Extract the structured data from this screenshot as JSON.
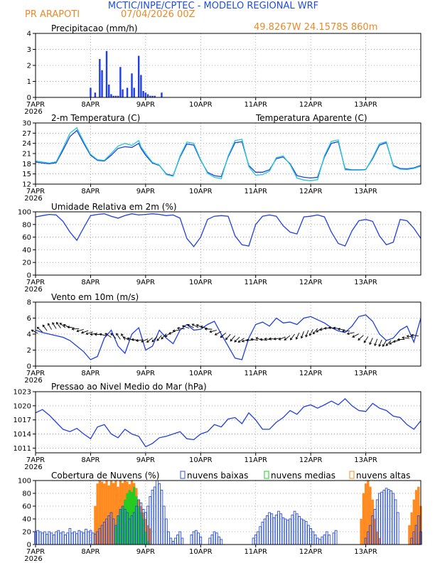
{
  "header": {
    "line1": "MCTIC/INPE/CPTEC - MODELO REGIONAL WRF",
    "station": "PR ARAPOTI",
    "run": "07/04/2026 00Z",
    "location": "49.8267W 24.1578S 860m"
  },
  "colors": {
    "header_blue": "#1f4fd8",
    "header_orange": "#e88a2a",
    "series_blue": "#1f3fe0",
    "series_cyan": "#22c7d8",
    "cloud_low": "#2a4fe0",
    "cloud_mid": "#22cc22",
    "cloud_high": "#ff8a1e"
  },
  "x_axis": {
    "ticks": [
      "7APR",
      "8APR",
      "9APR",
      "10APR",
      "11APR",
      "12APR",
      "13APR"
    ],
    "year": "2026"
  },
  "chart_data": [
    {
      "type": "bar",
      "id": "precip",
      "title": "Precipitacao (mm/h)",
      "ylim": [
        0,
        4
      ],
      "yticks": [
        0,
        1,
        2,
        3,
        4
      ],
      "x_hours": [
        24,
        26,
        28,
        29,
        31,
        32,
        33,
        34,
        35,
        36,
        37,
        38,
        40,
        42,
        43,
        45,
        46,
        47,
        48,
        49,
        50,
        51,
        52,
        55
      ],
      "values": [
        0.6,
        0.3,
        2.4,
        1.7,
        2.9,
        0.8,
        0.2,
        0.1,
        0.1,
        0.1,
        1.9,
        0.5,
        0.6,
        1.5,
        0.6,
        2.6,
        1.4,
        0.4,
        0.3,
        0.2,
        0.1,
        0.1,
        0.1,
        0.3
      ]
    },
    {
      "type": "line",
      "id": "temp",
      "title": "2-m Temperatura (C)",
      "ylim": [
        12,
        30
      ],
      "yticks": [
        12,
        15,
        18,
        21,
        24,
        27,
        30
      ],
      "x_hours": [
        0,
        3,
        6,
        9,
        12,
        15,
        18,
        21,
        24,
        27,
        30,
        33,
        36,
        39,
        42,
        45,
        46,
        48,
        51,
        54,
        57,
        60,
        63,
        66,
        69,
        72,
        75,
        78,
        81,
        84,
        87,
        90,
        93,
        96,
        99,
        102,
        105,
        108,
        111,
        114,
        117,
        120,
        123,
        126,
        129,
        132,
        135,
        138,
        141,
        144,
        147,
        150,
        153,
        156,
        159,
        162,
        165,
        168
      ],
      "series": [
        {
          "name": "",
          "values": [
            18.5,
            18.2,
            18,
            18.3,
            22,
            26,
            27.8,
            24,
            20.5,
            19,
            18.8,
            20.5,
            22.5,
            23,
            22.8,
            24,
            22.5,
            20.5,
            18.2,
            17.5,
            15,
            14.5,
            20,
            23.8,
            23.5,
            19,
            15.5,
            14.5,
            14.2,
            20,
            24.2,
            24.5,
            17.5,
            15.5,
            15.5,
            16.2,
            19.5,
            20,
            18,
            14.5,
            14,
            13.8,
            14,
            20,
            24,
            24.5,
            16.5,
            16.2,
            16.2,
            16.3,
            19.5,
            23.5,
            24.2,
            17.5,
            16.6,
            16.5,
            16.8,
            17.5
          ]
        },
        {
          "name": "Temperatura Aparente (C)",
          "values": [
            18.8,
            18.5,
            18.2,
            18.6,
            22.6,
            27,
            28.6,
            24.5,
            20.8,
            19.2,
            19,
            21,
            23.2,
            24,
            23.4,
            24.8,
            23,
            21,
            18.4,
            17.6,
            14.8,
            14.3,
            20.3,
            24.4,
            24,
            19.2,
            15.2,
            14,
            13.6,
            20.3,
            24.8,
            25.2,
            17.2,
            14.6,
            14.8,
            15.8,
            19.8,
            20.3,
            17.8,
            13.8,
            13.2,
            13,
            13.3,
            20.4,
            24.6,
            25,
            16.2,
            16.1,
            16.1,
            16.2,
            19.8,
            23.9,
            24.5,
            17.3,
            16.4,
            16.3,
            16.6,
            17.3
          ]
        }
      ]
    },
    {
      "type": "line",
      "id": "rh",
      "title": "Umidade Relativa em 2m (%)",
      "ylim": [
        0,
        100
      ],
      "yticks": [
        0,
        20,
        40,
        60,
        80,
        100
      ],
      "x_hours": [
        0,
        3,
        6,
        9,
        12,
        15,
        18,
        21,
        24,
        27,
        30,
        33,
        36,
        39,
        42,
        45,
        48,
        51,
        54,
        57,
        60,
        63,
        66,
        69,
        72,
        75,
        78,
        81,
        84,
        87,
        90,
        93,
        96,
        99,
        102,
        105,
        108,
        111,
        114,
        117,
        120,
        123,
        126,
        129,
        132,
        135,
        138,
        141,
        144,
        147,
        150,
        153,
        156,
        159,
        162,
        165,
        168
      ],
      "series": [
        {
          "name": "",
          "values": [
            92,
            94,
            96,
            95,
            85,
            68,
            55,
            75,
            94,
            96,
            97,
            93,
            90,
            94,
            97,
            95,
            96,
            97,
            96,
            94,
            95,
            90,
            58,
            45,
            60,
            88,
            93,
            94,
            93,
            62,
            48,
            46,
            80,
            93,
            95,
            93,
            78,
            68,
            65,
            92,
            93,
            95,
            92,
            68,
            50,
            46,
            70,
            86,
            88,
            85,
            62,
            48,
            52,
            88,
            86,
            74,
            58
          ]
        }
      ]
    },
    {
      "type": "line",
      "id": "wind",
      "title": "Vento em 10m (m/s)",
      "ylim": [
        0,
        8
      ],
      "yticks": [
        0,
        2,
        4,
        6,
        8
      ],
      "x_hours": [
        0,
        3,
        6,
        9,
        12,
        15,
        18,
        21,
        24,
        27,
        30,
        33,
        36,
        39,
        42,
        45,
        48,
        51,
        54,
        57,
        60,
        63,
        66,
        69,
        72,
        75,
        78,
        81,
        84,
        87,
        90,
        93,
        96,
        99,
        102,
        105,
        108,
        111,
        114,
        117,
        120,
        123,
        126,
        129,
        132,
        135,
        138,
        141,
        144,
        147,
        150,
        153,
        156,
        159,
        162,
        165,
        168
      ],
      "series": [
        {
          "name": "",
          "values": [
            4.5,
            4.2,
            4.0,
            3.8,
            3.6,
            3.2,
            2.5,
            1.8,
            0.8,
            1.2,
            3.5,
            4.5,
            2.5,
            1.6,
            4.0,
            4.8,
            2.0,
            2.5,
            4.5,
            3.5,
            2.8,
            4.5,
            5.2,
            4.5,
            4.6,
            5.2,
            5.6,
            4.0,
            2.5,
            1.0,
            0.8,
            3.5,
            5.2,
            5.5,
            5.0,
            6.0,
            5.4,
            5.5,
            5.2,
            6.0,
            6.2,
            5.8,
            5.4,
            4.8,
            4.4,
            4.2,
            5.0,
            6.2,
            6.4,
            5.6,
            4.0,
            3.2,
            3.5,
            4.5,
            5.0,
            3.0,
            6.0
          ]
        }
      ]
    },
    {
      "type": "line",
      "id": "pressure",
      "title": "Pressao ao Nivel Medio do Mar (hPa)",
      "ylim": [
        1010,
        1023
      ],
      "yticks": [
        1011,
        1014,
        1017,
        1020,
        1023
      ],
      "x_hours": [
        0,
        3,
        6,
        9,
        12,
        15,
        18,
        21,
        24,
        27,
        30,
        33,
        36,
        39,
        42,
        45,
        48,
        51,
        54,
        57,
        60,
        63,
        66,
        69,
        72,
        75,
        78,
        81,
        84,
        87,
        90,
        93,
        96,
        99,
        102,
        105,
        108,
        111,
        114,
        117,
        120,
        123,
        126,
        129,
        132,
        135,
        138,
        141,
        144,
        147,
        150,
        153,
        156,
        159,
        162,
        165,
        168
      ],
      "series": [
        {
          "name": "",
          "values": [
            1018.5,
            1019.2,
            1018,
            1016.5,
            1015,
            1014.5,
            1015.2,
            1014,
            1013,
            1015.5,
            1016,
            1014,
            1013.2,
            1015,
            1014,
            1013.5,
            1011.3,
            1012,
            1013.2,
            1013.5,
            1014,
            1014.5,
            1013,
            1012.8,
            1014,
            1014.5,
            1016,
            1015.5,
            1017.2,
            1017.5,
            1016.2,
            1018.5,
            1017,
            1015,
            1015,
            1016.5,
            1017.5,
            1019,
            1018.2,
            1019.8,
            1020.2,
            1019.5,
            1020.2,
            1021,
            1020.2,
            1021.5,
            1020,
            1019,
            1018.8,
            1020.5,
            1019.5,
            1019,
            1017.8,
            1017.5,
            1016,
            1015,
            1016.8
          ]
        }
      ]
    },
    {
      "type": "bar",
      "id": "clouds",
      "title": "Cobertura de Nuvens (%)",
      "ylim": [
        0,
        100
      ],
      "yticks": [
        0,
        20,
        40,
        60,
        80,
        100
      ],
      "legend": [
        "nuvens baixas",
        "nuvens medias",
        "nuvens altas"
      ],
      "series": [
        {
          "name": "nuvens baixas",
          "x_hours": [
            0,
            1,
            2,
            3,
            4,
            5,
            6,
            7,
            8,
            9,
            10,
            11,
            12,
            13,
            14,
            15,
            16,
            17,
            18,
            19,
            20,
            21,
            22,
            23,
            24,
            25,
            26,
            27,
            28,
            29,
            30,
            31,
            32,
            33,
            34,
            35,
            36,
            37,
            38,
            39,
            40,
            41,
            42,
            43,
            44,
            45,
            46,
            47,
            48,
            49,
            50,
            51,
            52,
            53,
            54,
            55,
            56,
            57,
            58,
            59,
            60,
            61,
            62,
            63,
            64,
            68,
            69,
            70,
            71,
            72,
            76,
            77,
            78,
            79,
            80,
            81,
            95,
            96,
            97,
            98,
            99,
            100,
            101,
            102,
            103,
            104,
            105,
            106,
            107,
            108,
            109,
            110,
            111,
            112,
            113,
            114,
            115,
            116,
            117,
            118,
            119,
            120,
            121,
            122,
            123,
            124,
            125,
            126,
            127,
            128,
            130,
            131,
            144,
            145,
            146,
            147,
            148,
            149,
            150,
            151,
            152,
            153,
            154,
            155,
            156,
            157,
            158,
            164,
            165,
            166,
            167,
            168
          ],
          "values": [
            20,
            22,
            20,
            18,
            20,
            16,
            20,
            18,
            15,
            20,
            22,
            18,
            20,
            15,
            18,
            25,
            18,
            20,
            17,
            22,
            20,
            18,
            24,
            20,
            22,
            18,
            16,
            20,
            25,
            30,
            35,
            40,
            45,
            50,
            40,
            30,
            45,
            55,
            60,
            55,
            50,
            40,
            45,
            50,
            60,
            70,
            65,
            55,
            50,
            60,
            75,
            85,
            90,
            100,
            95,
            85,
            60,
            40,
            20,
            10,
            5,
            10,
            15,
            20,
            10,
            15,
            20,
            22,
            18,
            12,
            10,
            15,
            20,
            18,
            12,
            8,
            10,
            15,
            20,
            28,
            35,
            40,
            45,
            50,
            48,
            42,
            46,
            52,
            48,
            42,
            40,
            38,
            40,
            46,
            52,
            48,
            44,
            40,
            38,
            36,
            30,
            25,
            20,
            15,
            10,
            8,
            12,
            15,
            20,
            15,
            18,
            22,
            10,
            20,
            30,
            45,
            55,
            70,
            80,
            82,
            85,
            88,
            86,
            84,
            80,
            70,
            50,
            10,
            20,
            30,
            45,
            20
          ]
        },
        {
          "name": "nuvens medias",
          "x_hours": [
            35,
            36,
            37,
            38,
            39,
            40,
            41,
            42,
            43,
            44,
            45,
            46,
            47,
            48,
            49
          ],
          "values": [
            30,
            45,
            55,
            60,
            70,
            80,
            85,
            82,
            90,
            75,
            60,
            50,
            40,
            20,
            5
          ]
        },
        {
          "name": "nuvens altas",
          "x_hours": [
            26,
            27,
            28,
            29,
            30,
            31,
            32,
            33,
            34,
            35,
            36,
            37,
            38,
            39,
            40,
            41,
            42,
            43,
            44,
            45,
            46,
            47,
            48,
            49,
            50,
            142,
            143,
            144,
            145,
            146,
            147,
            148,
            149,
            150,
            163,
            164,
            165,
            166,
            167,
            168
          ],
          "values": [
            60,
            95,
            100,
            98,
            95,
            100,
            92,
            100,
            96,
            100,
            90,
            100,
            96,
            100,
            98,
            94,
            100,
            96,
            88,
            70,
            60,
            50,
            40,
            30,
            25,
            40,
            80,
            95,
            100,
            90,
            70,
            40,
            20,
            10,
            30,
            50,
            70,
            85,
            90,
            60
          ]
        }
      ]
    }
  ]
}
